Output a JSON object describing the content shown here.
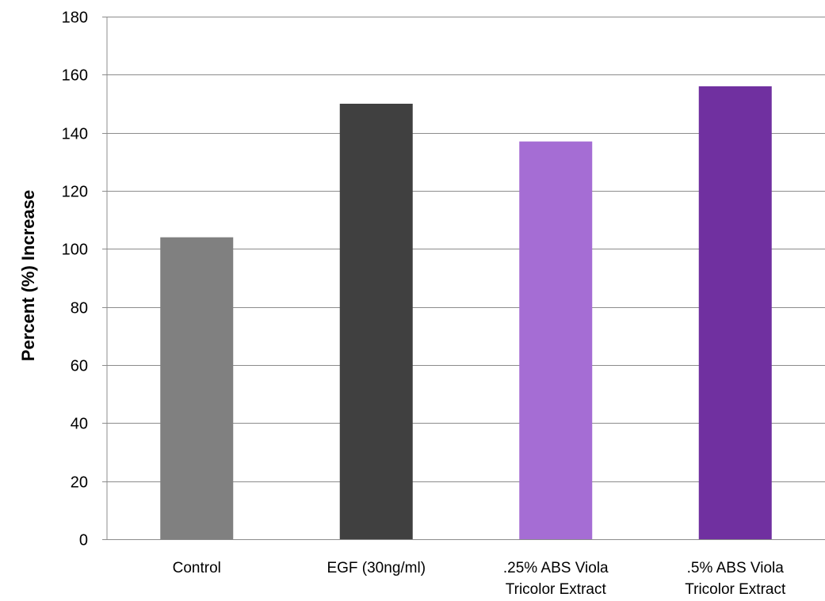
{
  "chart_data": {
    "type": "bar",
    "title": "",
    "xlabel": "",
    "ylabel": "Percent (%) Increase",
    "ylim": [
      0,
      180
    ],
    "yticks": [
      0,
      20,
      40,
      60,
      80,
      100,
      120,
      140,
      160,
      180
    ],
    "grid": true,
    "categories": [
      [
        "Control"
      ],
      [
        "EGF (30ng/ml)"
      ],
      [
        ".25% ABS Viola",
        "Tricolor Extract"
      ],
      [
        ".5% ABS Viola",
        "Tricolor Extract"
      ]
    ],
    "values": [
      104,
      150,
      137,
      156
    ],
    "colors": [
      "#808080",
      "#404040",
      "#a56dd4",
      "#7030a0"
    ]
  }
}
